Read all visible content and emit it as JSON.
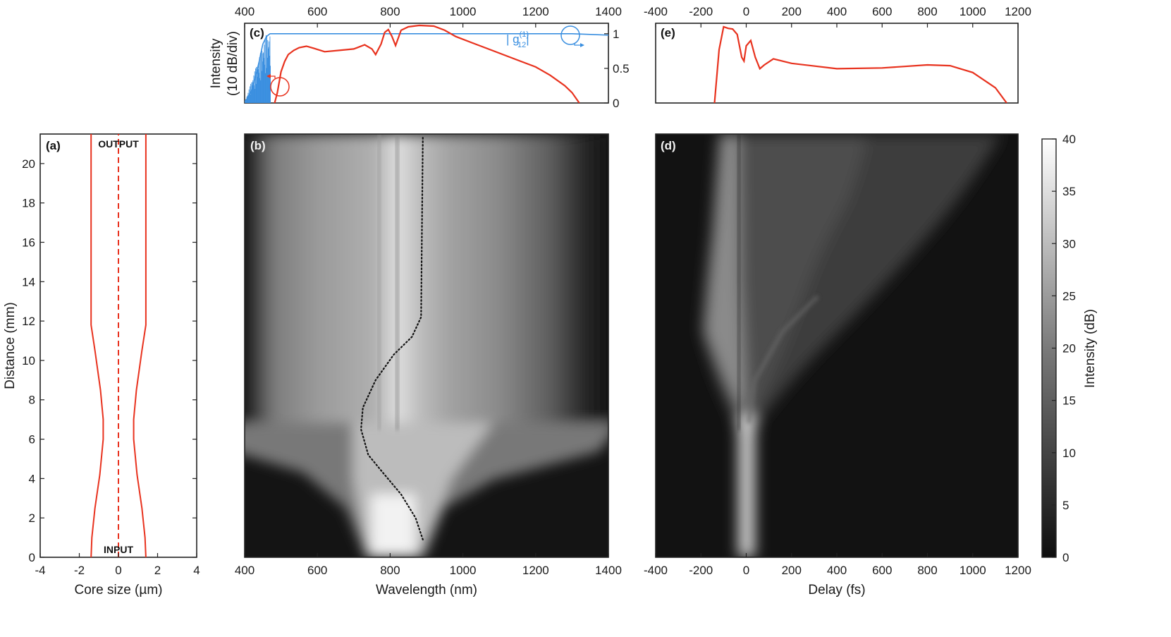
{
  "colors": {
    "red": "#e8321e",
    "blue": "#3a8fe0",
    "axis": "#222222",
    "map_low": "#0e0e0e",
    "map_high": "#ffffff"
  },
  "chart_data": [
    {
      "id": "a",
      "type": "line",
      "panel_label": "(a)",
      "xlabel": "Core size (µm)",
      "ylabel": "Distance (mm)",
      "xlim": [
        -4,
        4
      ],
      "ylim": [
        0,
        21.5
      ],
      "xticks": [
        "-4",
        "-2",
        "0",
        "2",
        "4"
      ],
      "yticks": [
        "0",
        "2",
        "4",
        "6",
        "8",
        "10",
        "12",
        "14",
        "16",
        "18",
        "20"
      ],
      "annotations": [
        "OUTPUT",
        "INPUT"
      ],
      "series": [
        {
          "role": "outer-right",
          "x": [
            1.4,
            1.36,
            1.2,
            0.95,
            0.78,
            0.78,
            0.92,
            1.2,
            1.4,
            1.4
          ],
          "y": [
            0,
            1,
            2.5,
            4.2,
            6.0,
            7.0,
            8.5,
            10.5,
            11.8,
            21.5
          ]
        },
        {
          "role": "outer-left",
          "x": [
            -1.4,
            -1.36,
            -1.2,
            -0.95,
            -0.78,
            -0.78,
            -0.92,
            -1.2,
            -1.4,
            -1.4
          ],
          "y": [
            0,
            1,
            2.5,
            4.2,
            6.0,
            7.0,
            8.5,
            10.5,
            11.8,
            21.5
          ]
        },
        {
          "role": "axis-center-dashed",
          "x": [
            0,
            0
          ],
          "y": [
            0,
            21.5
          ]
        }
      ]
    },
    {
      "id": "b",
      "type": "heatmap",
      "panel_label": "(b)",
      "xlabel": "Wavelength (nm)",
      "xlim": [
        400,
        1400
      ],
      "ylim": [
        0,
        21.5
      ],
      "xticks": [
        "400",
        "600",
        "800",
        "1000",
        "1200",
        "1400"
      ],
      "colorbar_label": "Intensity (dB)",
      "crange": [
        0,
        40
      ],
      "dotted_line": {
        "x": [
          890,
          870,
          830,
          780,
          740,
          720,
          725,
          760,
          810,
          860,
          885,
          890
        ],
        "y": [
          0.9,
          2.0,
          3.2,
          4.3,
          5.2,
          6.5,
          7.6,
          9.0,
          10.3,
          11.2,
          12.2,
          21.4
        ]
      }
    },
    {
      "id": "c",
      "type": "line",
      "panel_label": "(c)",
      "ylabel_left": "Intensity",
      "ylabel_left2": "(10 dB/div)",
      "xlim": [
        400,
        1400
      ],
      "ylim_right": [
        0,
        1.1
      ],
      "xticks": [
        "400",
        "600",
        "800",
        "1000",
        "1200",
        "1400"
      ],
      "yticks_right": [
        "0",
        "0.5",
        "1"
      ],
      "coherence_label_pre": "| g",
      "coherence_label_sup": "(1)",
      "coherence_label_sub": "12",
      "coherence_label_post": "|",
      "series": [
        {
          "role": "spectrum",
          "x": [
            480,
            490,
            500,
            510,
            520,
            535,
            550,
            570,
            590,
            620,
            660,
            700,
            730,
            750,
            760,
            775,
            785,
            795,
            805,
            815,
            830,
            850,
            880,
            920,
            950,
            980,
            1020,
            1080,
            1150,
            1200,
            1240,
            1280,
            1300,
            1320
          ],
          "y": [
            -0.05,
            0.15,
            0.45,
            0.6,
            0.7,
            0.76,
            0.8,
            0.82,
            0.79,
            0.74,
            0.76,
            0.78,
            0.84,
            0.78,
            0.7,
            0.85,
            1.02,
            1.06,
            0.96,
            0.83,
            1.05,
            1.1,
            1.12,
            1.11,
            1.05,
            0.96,
            0.88,
            0.76,
            0.62,
            0.52,
            0.4,
            0.25,
            0.15,
            0.0
          ]
        },
        {
          "role": "coherence",
          "x": [
            400,
            410,
            420,
            430,
            440,
            450,
            460,
            470,
            480,
            500,
            700,
            1000,
            1300,
            1400
          ],
          "y": [
            0.02,
            0.08,
            0.2,
            0.38,
            0.6,
            0.85,
            0.96,
            1.0,
            1.0,
            1.0,
            1.0,
            1.0,
            1.0,
            0.98
          ]
        }
      ]
    },
    {
      "id": "d",
      "type": "heatmap",
      "panel_label": "(d)",
      "xlabel": "Delay (fs)",
      "xlim": [
        -400,
        1200
      ],
      "ylim": [
        0,
        21.5
      ],
      "xticks": [
        "-400",
        "-200",
        "0",
        "200",
        "400",
        "600",
        "800",
        "1000",
        "1200"
      ],
      "crange": [
        0,
        40
      ]
    },
    {
      "id": "e",
      "type": "line",
      "panel_label": "(e)",
      "xlim": [
        -400,
        1200
      ],
      "xticks": [
        "-400",
        "-200",
        "0",
        "200",
        "400",
        "600",
        "800",
        "1000",
        "1200"
      ],
      "series": [
        {
          "role": "temporal-intensity",
          "x": [
            -140,
            -120,
            -100,
            -80,
            -60,
            -40,
            -20,
            -10,
            0,
            20,
            40,
            60,
            80,
            120,
            200,
            400,
            600,
            800,
            900,
            1000,
            1100,
            1150
          ],
          "y": [
            0.0,
            0.7,
            1.0,
            0.98,
            0.97,
            0.9,
            0.6,
            0.55,
            0.75,
            0.82,
            0.6,
            0.45,
            0.5,
            0.58,
            0.52,
            0.45,
            0.46,
            0.5,
            0.49,
            0.4,
            0.2,
            0.0
          ]
        }
      ]
    },
    {
      "id": "colorbar",
      "type": "heatmap",
      "label": "Intensity (dB)",
      "range": [
        0,
        40
      ],
      "ticks": [
        "0",
        "5",
        "10",
        "15",
        "20",
        "25",
        "30",
        "35",
        "40"
      ]
    }
  ]
}
